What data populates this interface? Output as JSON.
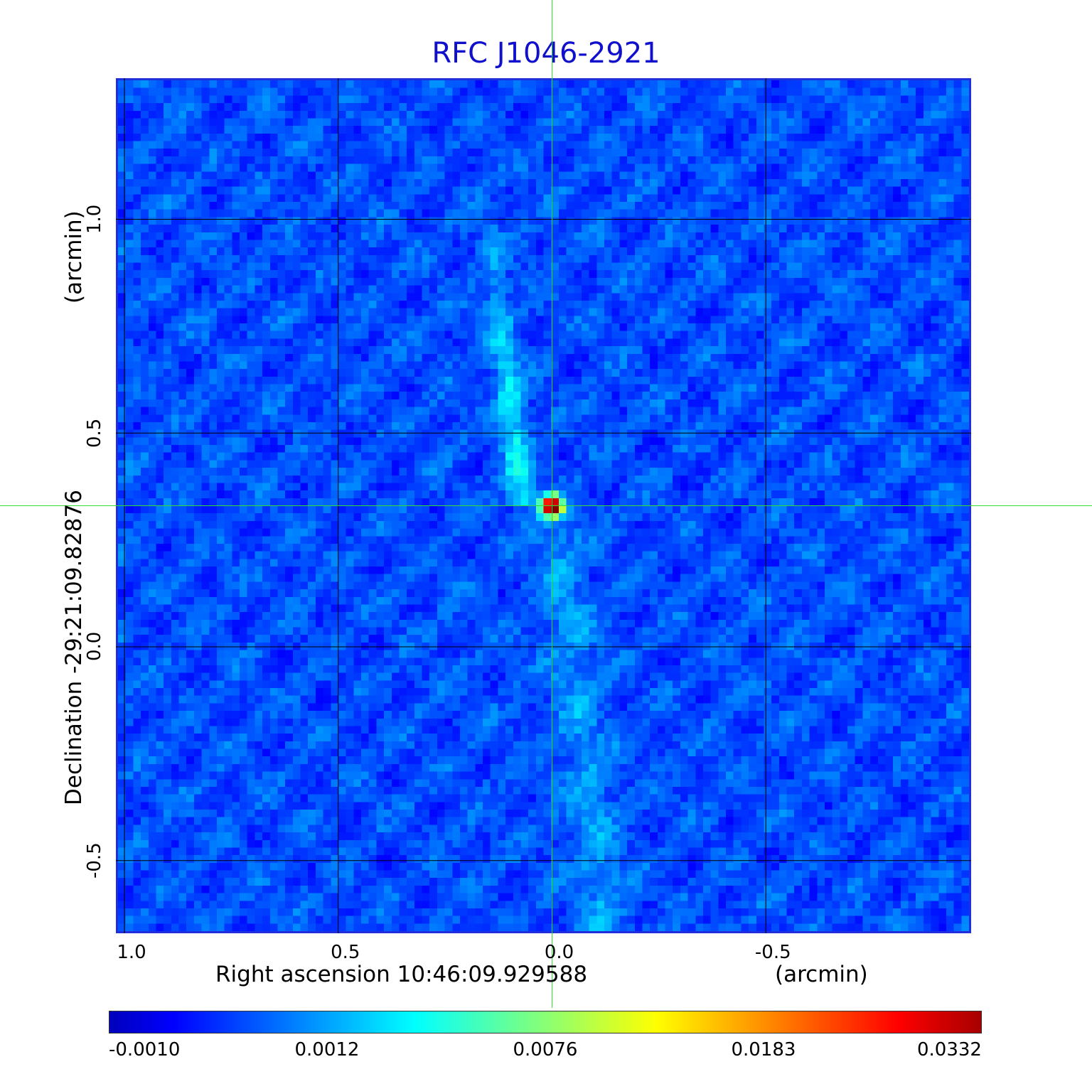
{
  "chart_data": {
    "type": "heatmap",
    "title": "RFC J1046-2921",
    "xlabel": "Right ascension  10:46:09.929588",
    "xunit": "(arcmin)",
    "ylabel": "Declination  -29:21:09.82876",
    "yunit": "(arcmin)",
    "x_ticks": [
      "1.0",
      "0.5",
      "0.0",
      "-0.5"
    ],
    "y_ticks": [
      "1.0",
      "0.5",
      "0.0",
      "-0.5"
    ],
    "x_tick_values": [
      1.0,
      0.5,
      0.0,
      -0.5
    ],
    "y_tick_values": [
      1.0,
      0.5,
      0.0,
      -0.5
    ],
    "xlim": [
      1.02,
      -0.98
    ],
    "ylim": [
      -0.67,
      1.33
    ],
    "grid": true,
    "crosshair": {
      "x": 0.0,
      "y": 0.33
    },
    "source_peak": {
      "x": 0.0,
      "y": 0.33,
      "value": 0.0332
    },
    "colormap": "jet",
    "colorbar_ticks": [
      "-0.0010",
      "0.0012",
      "0.0076",
      "0.0183",
      "0.0332"
    ],
    "colorbar_range": [
      -0.001,
      0.0332
    ],
    "colors": {
      "title": "#1010cc",
      "crosshair": "#33dd33",
      "grid": "#000000",
      "frame": "#1f2fd9"
    }
  }
}
